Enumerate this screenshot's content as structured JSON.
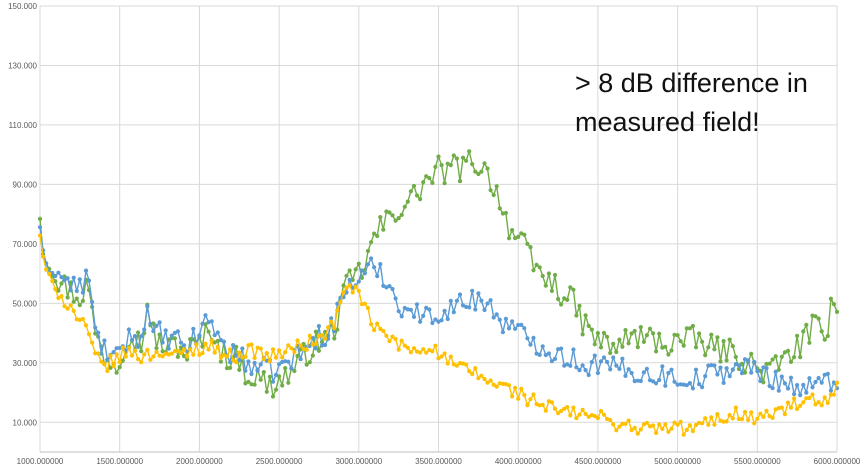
{
  "chart_data": {
    "type": "line",
    "title": "",
    "xlabel": "",
    "ylabel": "",
    "xlim": [
      1000,
      6000
    ],
    "ylim": [
      0,
      150
    ],
    "grid": true,
    "legend": "none",
    "x_ticks": [
      1000,
      1500,
      2000,
      2500,
      3000,
      3500,
      4000,
      4500,
      5000,
      5500,
      6000
    ],
    "x_tick_labels": [
      "1000.000000",
      "1500.000000",
      "2000.000000",
      "2500.000000",
      "3000.000000",
      "3500.000000",
      "4000.000000",
      "4500.000000",
      "5000.000000",
      "5500.000000",
      "6000.000000"
    ],
    "y_ticks": [
      10,
      30,
      50,
      70,
      90,
      110,
      130,
      150
    ],
    "y_tick_labels": [
      "10.000",
      "30.000",
      "50.000",
      "70.000",
      "90.000",
      "110.000",
      "130.000",
      "150.000"
    ],
    "series": [
      {
        "name": "green",
        "color": "#70ad47",
        "anchors": [
          [
            1000,
            79
          ],
          [
            1010,
            70
          ],
          [
            1030,
            65
          ],
          [
            1060,
            62
          ],
          [
            1100,
            58
          ],
          [
            1150,
            56
          ],
          [
            1200,
            54
          ],
          [
            1250,
            52
          ],
          [
            1300,
            57
          ],
          [
            1330,
            45
          ],
          [
            1360,
            38
          ],
          [
            1400,
            33
          ],
          [
            1440,
            31
          ],
          [
            1480,
            30
          ],
          [
            1500,
            32
          ],
          [
            1550,
            40
          ],
          [
            1600,
            38
          ],
          [
            1650,
            36
          ],
          [
            1670,
            55
          ],
          [
            1690,
            41
          ],
          [
            1750,
            37
          ],
          [
            1800,
            34
          ],
          [
            1850,
            37
          ],
          [
            1900,
            33
          ],
          [
            1950,
            35
          ],
          [
            2000,
            36
          ],
          [
            2050,
            40
          ],
          [
            2080,
            42
          ],
          [
            2120,
            35
          ],
          [
            2180,
            32
          ],
          [
            2250,
            31
          ],
          [
            2300,
            26
          ],
          [
            2350,
            25
          ],
          [
            2400,
            24
          ],
          [
            2450,
            22
          ],
          [
            2500,
            24
          ],
          [
            2550,
            26
          ],
          [
            2600,
            28
          ],
          [
            2650,
            32
          ],
          [
            2700,
            35
          ],
          [
            2750,
            37
          ],
          [
            2800,
            38
          ],
          [
            2850,
            42
          ],
          [
            2900,
            52
          ],
          [
            2950,
            58
          ],
          [
            3000,
            60
          ],
          [
            3050,
            64
          ],
          [
            3100,
            73
          ],
          [
            3150,
            76
          ],
          [
            3200,
            79
          ],
          [
            3250,
            82
          ],
          [
            3300,
            84
          ],
          [
            3350,
            86
          ],
          [
            3400,
            90
          ],
          [
            3450,
            92
          ],
          [
            3500,
            95
          ],
          [
            3550,
            94
          ],
          [
            3600,
            96
          ],
          [
            3650,
            95
          ],
          [
            3700,
            98
          ],
          [
            3750,
            97
          ],
          [
            3800,
            94
          ],
          [
            3850,
            90
          ],
          [
            3900,
            82
          ],
          [
            3950,
            75
          ],
          [
            4000,
            71
          ],
          [
            4050,
            68
          ],
          [
            4100,
            62
          ],
          [
            4150,
            60
          ],
          [
            4200,
            57
          ],
          [
            4250,
            55
          ],
          [
            4300,
            52
          ],
          [
            4350,
            50
          ],
          [
            4400,
            44
          ],
          [
            4450,
            40
          ],
          [
            4500,
            38
          ],
          [
            4550,
            36
          ],
          [
            4600,
            35
          ],
          [
            4650,
            37
          ],
          [
            4700,
            38
          ],
          [
            4750,
            39
          ],
          [
            4800,
            38
          ],
          [
            4850,
            38
          ],
          [
            4900,
            37
          ],
          [
            4950,
            36
          ],
          [
            5000,
            38
          ],
          [
            5050,
            37
          ],
          [
            5100,
            38
          ],
          [
            5150,
            37
          ],
          [
            5200,
            35
          ],
          [
            5250,
            35
          ],
          [
            5300,
            34
          ],
          [
            5350,
            33
          ],
          [
            5400,
            32
          ],
          [
            5450,
            30
          ],
          [
            5500,
            28
          ],
          [
            5550,
            27
          ],
          [
            5600,
            28
          ],
          [
            5650,
            30
          ],
          [
            5700,
            33
          ],
          [
            5750,
            35
          ],
          [
            5800,
            38
          ],
          [
            5850,
            42
          ],
          [
            5900,
            40
          ],
          [
            5930,
            35
          ],
          [
            5960,
            55
          ],
          [
            6000,
            49
          ]
        ],
        "noise": 4.5
      },
      {
        "name": "blue",
        "color": "#5b9bd5",
        "anchors": [
          [
            1000,
            76
          ],
          [
            1010,
            70
          ],
          [
            1030,
            63
          ],
          [
            1060,
            61
          ],
          [
            1100,
            60
          ],
          [
            1150,
            58
          ],
          [
            1200,
            56
          ],
          [
            1250,
            55
          ],
          [
            1300,
            60
          ],
          [
            1330,
            47
          ],
          [
            1360,
            38
          ],
          [
            1400,
            35
          ],
          [
            1440,
            32
          ],
          [
            1480,
            31
          ],
          [
            1500,
            34
          ],
          [
            1550,
            38
          ],
          [
            1600,
            40
          ],
          [
            1650,
            37
          ],
          [
            1670,
            55
          ],
          [
            1690,
            40
          ],
          [
            1750,
            40
          ],
          [
            1800,
            37
          ],
          [
            1850,
            38
          ],
          [
            1900,
            35
          ],
          [
            1950,
            37
          ],
          [
            2000,
            40
          ],
          [
            2050,
            45
          ],
          [
            2080,
            44
          ],
          [
            2120,
            38
          ],
          [
            2180,
            34
          ],
          [
            2250,
            32
          ],
          [
            2300,
            30
          ],
          [
            2350,
            29
          ],
          [
            2400,
            28
          ],
          [
            2450,
            27
          ],
          [
            2500,
            28
          ],
          [
            2550,
            30
          ],
          [
            2600,
            32
          ],
          [
            2650,
            34
          ],
          [
            2700,
            36
          ],
          [
            2750,
            39
          ],
          [
            2800,
            40
          ],
          [
            2850,
            44
          ],
          [
            2900,
            53
          ],
          [
            2950,
            57
          ],
          [
            3000,
            58
          ],
          [
            3050,
            60
          ],
          [
            3100,
            63
          ],
          [
            3150,
            60
          ],
          [
            3200,
            55
          ],
          [
            3250,
            50
          ],
          [
            3300,
            48
          ],
          [
            3350,
            47
          ],
          [
            3400,
            46
          ],
          [
            3450,
            45
          ],
          [
            3500,
            47
          ],
          [
            3550,
            48
          ],
          [
            3600,
            49
          ],
          [
            3650,
            50
          ],
          [
            3700,
            51
          ],
          [
            3750,
            52
          ],
          [
            3800,
            50
          ],
          [
            3850,
            47
          ],
          [
            3900,
            44
          ],
          [
            3950,
            42
          ],
          [
            4000,
            40
          ],
          [
            4050,
            39
          ],
          [
            4100,
            37
          ],
          [
            4150,
            36
          ],
          [
            4200,
            34
          ],
          [
            4250,
            33
          ],
          [
            4300,
            32
          ],
          [
            4350,
            31
          ],
          [
            4400,
            30
          ],
          [
            4450,
            29
          ],
          [
            4500,
            30
          ],
          [
            4550,
            29
          ],
          [
            4600,
            28
          ],
          [
            4650,
            28
          ],
          [
            4700,
            27
          ],
          [
            4750,
            27
          ],
          [
            4800,
            26
          ],
          [
            4850,
            26
          ],
          [
            4900,
            26
          ],
          [
            4950,
            25
          ],
          [
            5000,
            25
          ],
          [
            5050,
            25
          ],
          [
            5100,
            24
          ],
          [
            5150,
            25
          ],
          [
            5200,
            26
          ],
          [
            5250,
            27
          ],
          [
            5300,
            27
          ],
          [
            5350,
            28
          ],
          [
            5400,
            29
          ],
          [
            5450,
            28
          ],
          [
            5500,
            27
          ],
          [
            5550,
            26
          ],
          [
            5600,
            25
          ],
          [
            5650,
            24
          ],
          [
            5700,
            23
          ],
          [
            5750,
            22
          ],
          [
            5800,
            21
          ],
          [
            5850,
            22
          ],
          [
            5900,
            23
          ],
          [
            5950,
            24
          ],
          [
            6000,
            25
          ]
        ],
        "noise": 3.8
      },
      {
        "name": "yellow",
        "color": "#ffc000",
        "anchors": [
          [
            1000,
            73
          ],
          [
            1010,
            68
          ],
          [
            1030,
            62
          ],
          [
            1060,
            59
          ],
          [
            1100,
            55
          ],
          [
            1150,
            51
          ],
          [
            1200,
            48
          ],
          [
            1250,
            44
          ],
          [
            1300,
            40
          ],
          [
            1330,
            35
          ],
          [
            1360,
            31
          ],
          [
            1400,
            29
          ],
          [
            1440,
            30
          ],
          [
            1480,
            31
          ],
          [
            1500,
            32
          ],
          [
            1550,
            34
          ],
          [
            1600,
            33
          ],
          [
            1650,
            32
          ],
          [
            1700,
            33
          ],
          [
            1750,
            34
          ],
          [
            1800,
            33
          ],
          [
            1850,
            32
          ],
          [
            1900,
            33
          ],
          [
            1950,
            34
          ],
          [
            2000,
            35
          ],
          [
            2050,
            36
          ],
          [
            2100,
            35
          ],
          [
            2150,
            33
          ],
          [
            2200,
            32
          ],
          [
            2250,
            33
          ],
          [
            2300,
            34
          ],
          [
            2350,
            34
          ],
          [
            2400,
            33
          ],
          [
            2450,
            32
          ],
          [
            2500,
            33
          ],
          [
            2550,
            34
          ],
          [
            2600,
            35
          ],
          [
            2650,
            36
          ],
          [
            2700,
            37
          ],
          [
            2750,
            38
          ],
          [
            2800,
            40
          ],
          [
            2850,
            44
          ],
          [
            2900,
            52
          ],
          [
            2950,
            57
          ],
          [
            3000,
            52
          ],
          [
            3050,
            47
          ],
          [
            3100,
            42
          ],
          [
            3150,
            40
          ],
          [
            3200,
            38
          ],
          [
            3250,
            36
          ],
          [
            3300,
            35
          ],
          [
            3350,
            34
          ],
          [
            3400,
            35
          ],
          [
            3450,
            36
          ],
          [
            3500,
            33
          ],
          [
            3550,
            31
          ],
          [
            3600,
            29
          ],
          [
            3650,
            28
          ],
          [
            3700,
            27
          ],
          [
            3750,
            26
          ],
          [
            3800,
            24
          ],
          [
            3850,
            23
          ],
          [
            3900,
            22
          ],
          [
            3950,
            21
          ],
          [
            4000,
            20
          ],
          [
            4050,
            18
          ],
          [
            4100,
            17
          ],
          [
            4150,
            16
          ],
          [
            4200,
            15
          ],
          [
            4250,
            14
          ],
          [
            4300,
            13
          ],
          [
            4350,
            13
          ],
          [
            4400,
            13
          ],
          [
            4450,
            12
          ],
          [
            4500,
            12
          ],
          [
            4550,
            11
          ],
          [
            4600,
            10
          ],
          [
            4650,
            9
          ],
          [
            4700,
            9
          ],
          [
            4750,
            8
          ],
          [
            4800,
            8
          ],
          [
            4850,
            8
          ],
          [
            4900,
            8
          ],
          [
            4950,
            8
          ],
          [
            5000,
            8
          ],
          [
            5050,
            8
          ],
          [
            5100,
            8
          ],
          [
            5150,
            9
          ],
          [
            5200,
            10
          ],
          [
            5250,
            11
          ],
          [
            5300,
            12
          ],
          [
            5350,
            13
          ],
          [
            5400,
            13
          ],
          [
            5450,
            12
          ],
          [
            5500,
            11
          ],
          [
            5550,
            12
          ],
          [
            5600,
            13
          ],
          [
            5650,
            14
          ],
          [
            5700,
            15
          ],
          [
            5750,
            16
          ],
          [
            5800,
            17
          ],
          [
            5850,
            17
          ],
          [
            5900,
            16
          ],
          [
            5950,
            16
          ],
          [
            6000,
            22
          ]
        ],
        "noise": 2.4
      }
    ],
    "annotation": "> 8 dB difference in\nmeasured field!"
  }
}
